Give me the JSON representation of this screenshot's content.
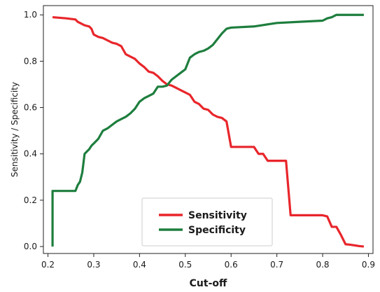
{
  "chart_data": {
    "type": "line",
    "xlabel": "Cut-off",
    "ylabel": "Sensitivity / Specificity",
    "xlim": [
      0.19,
      0.91
    ],
    "ylim": [
      -0.03,
      1.04
    ],
    "xticks": [
      0.2,
      0.3,
      0.4,
      0.5,
      0.6,
      0.7,
      0.8,
      0.9
    ],
    "xtick_labels": [
      "0.2",
      "0.3",
      "0.4",
      "0.5",
      "0.6",
      "0.7",
      "0.8",
      "0.9"
    ],
    "yticks": [
      0.0,
      0.2,
      0.4,
      0.6,
      0.8,
      1.0
    ],
    "ytick_labels": [
      "0.0",
      "0.2",
      "0.4",
      "0.6",
      "0.8",
      "1.0"
    ],
    "grid": false,
    "legend": {
      "position": "bottom-center"
    },
    "series": [
      {
        "name": "Sensitivity",
        "color": "#e8262b",
        "x": [
          0.21,
          0.24,
          0.26,
          0.265,
          0.27,
          0.28,
          0.29,
          0.295,
          0.3,
          0.31,
          0.32,
          0.33,
          0.34,
          0.35,
          0.36,
          0.37,
          0.38,
          0.39,
          0.4,
          0.41,
          0.42,
          0.43,
          0.44,
          0.45,
          0.46,
          0.47,
          0.48,
          0.49,
          0.5,
          0.51,
          0.52,
          0.53,
          0.54,
          0.55,
          0.56,
          0.57,
          0.58,
          0.59,
          0.6,
          0.65,
          0.66,
          0.67,
          0.68,
          0.69,
          0.7,
          0.71,
          0.72,
          0.73,
          0.75,
          0.8,
          0.81,
          0.82,
          0.83,
          0.84,
          0.85,
          0.86,
          0.87,
          0.88,
          0.89
        ],
        "y": [
          0.99,
          0.985,
          0.98,
          0.97,
          0.965,
          0.955,
          0.95,
          0.94,
          0.915,
          0.905,
          0.9,
          0.89,
          0.88,
          0.875,
          0.865,
          0.83,
          0.82,
          0.81,
          0.79,
          0.775,
          0.755,
          0.75,
          0.735,
          0.715,
          0.7,
          0.695,
          0.685,
          0.675,
          0.665,
          0.655,
          0.625,
          0.615,
          0.595,
          0.59,
          0.57,
          0.56,
          0.555,
          0.54,
          0.43,
          0.43,
          0.4,
          0.4,
          0.37,
          0.37,
          0.37,
          0.37,
          0.37,
          0.135,
          0.135,
          0.135,
          0.13,
          0.085,
          0.085,
          0.05,
          0.01,
          0.008,
          0.005,
          0.002,
          0.0
        ]
      },
      {
        "name": "Specificity",
        "color": "#1e7e3e",
        "x": [
          0.21,
          0.21,
          0.26,
          0.265,
          0.27,
          0.275,
          0.28,
          0.285,
          0.29,
          0.295,
          0.3,
          0.31,
          0.32,
          0.33,
          0.34,
          0.35,
          0.36,
          0.37,
          0.38,
          0.39,
          0.4,
          0.41,
          0.42,
          0.43,
          0.44,
          0.45,
          0.46,
          0.47,
          0.48,
          0.49,
          0.5,
          0.51,
          0.52,
          0.53,
          0.54,
          0.55,
          0.56,
          0.57,
          0.58,
          0.59,
          0.6,
          0.65,
          0.7,
          0.75,
          0.8,
          0.81,
          0.82,
          0.83,
          0.84,
          0.89
        ],
        "y": [
          0.0,
          0.24,
          0.24,
          0.265,
          0.28,
          0.32,
          0.4,
          0.41,
          0.42,
          0.435,
          0.445,
          0.465,
          0.5,
          0.51,
          0.525,
          0.54,
          0.55,
          0.56,
          0.575,
          0.595,
          0.625,
          0.64,
          0.65,
          0.66,
          0.69,
          0.69,
          0.695,
          0.72,
          0.735,
          0.75,
          0.765,
          0.815,
          0.83,
          0.84,
          0.845,
          0.855,
          0.87,
          0.895,
          0.92,
          0.94,
          0.945,
          0.95,
          0.965,
          0.97,
          0.975,
          0.985,
          0.99,
          1.0,
          1.0,
          1.0
        ]
      }
    ]
  }
}
